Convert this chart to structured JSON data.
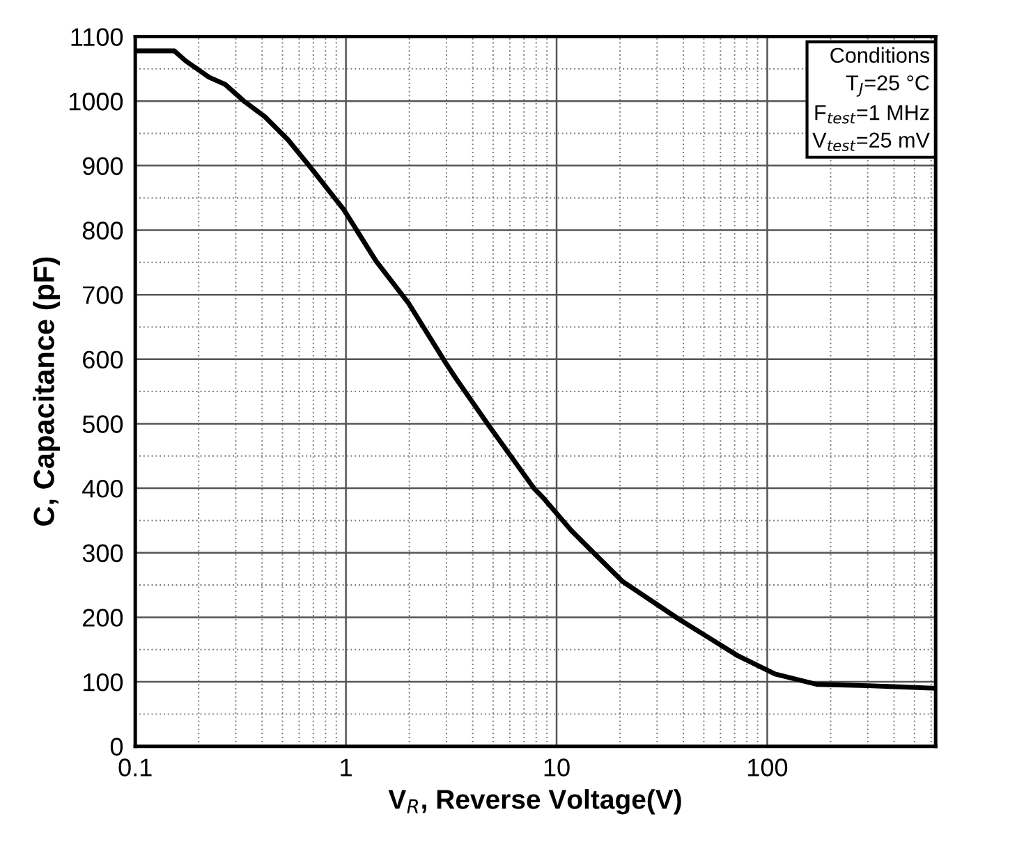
{
  "chart_data": {
    "type": "line",
    "xlabel": "V$_{R}$, Reverse Voltage(V)",
    "ylabel": "C, Capacitance (pF)",
    "log": "x",
    "xlim": [
      0.1,
      630
    ],
    "xticks": [
      0.1,
      1,
      10,
      100
    ],
    "ylim": [
      0,
      1100
    ],
    "yticks": [
      0,
      100,
      200,
      300,
      400,
      500,
      600,
      700,
      800,
      900,
      1000,
      1100
    ],
    "grid": true,
    "marker": "none",
    "line_style": "solid",
    "annotations": [
      "Conditions\nT$_{J}$=25 °C\nF$_{test}$=1 MHz\nV$_{test}$=25 mV"
    ],
    "series": [
      {
        "color": "#000000",
        "x": [
          0.1,
          0.153,
          0.174,
          0.224,
          0.267,
          0.328,
          0.412,
          0.531,
          0.684,
          0.976,
          1.39,
          1.98,
          2.98,
          3.3,
          4.7,
          7.8,
          8.65,
          11.7,
          15.1,
          20.5,
          37.7,
          72.8,
          109,
          172,
          300,
          628
        ],
        "values": [
          1078,
          1078,
          1062,
          1037,
          1026,
          1000,
          976,
          940,
          896,
          832,
          752,
          687,
          594,
          572,
          500,
          400,
          385,
          335,
          299,
          256,
          198,
          140,
          112,
          96,
          94,
          90
        ]
      }
    ]
  }
}
